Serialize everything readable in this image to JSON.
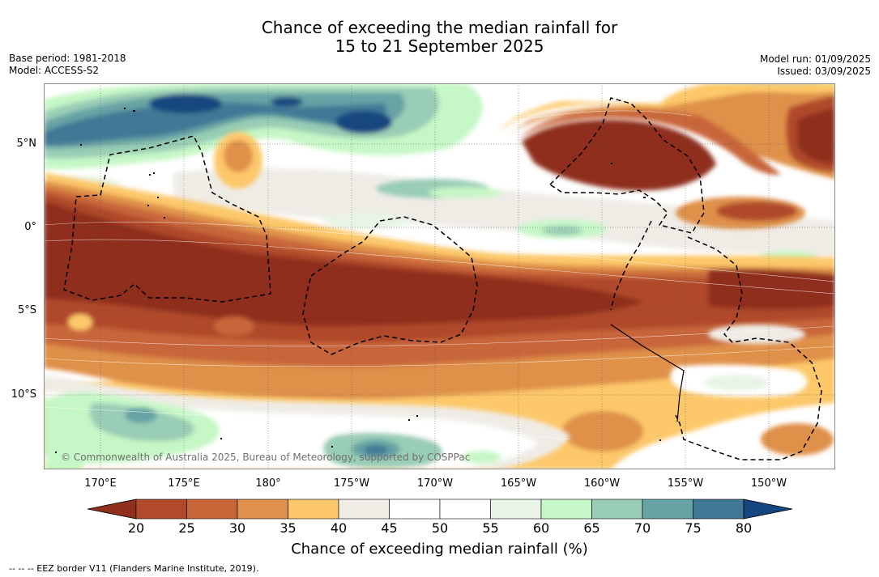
{
  "title": {
    "line1": "Chance of exceeding the median rainfall for",
    "line2": "15 to 21 September 2025"
  },
  "meta": {
    "base_period": "Base period: 1981-2018",
    "model": "Model: ACCESS-S2",
    "model_run": "Model run: 01/09/2025",
    "issued": "Issued: 03/09/2025"
  },
  "map": {
    "lat_labels": [
      "5°N",
      "0°",
      "5°S",
      "10°S"
    ],
    "lon_labels": [
      "170°E",
      "175°E",
      "180°",
      "175°W",
      "170°W",
      "165°W",
      "160°W",
      "155°W",
      "150°W"
    ],
    "copyright": "© Commonwealth of Australia 2025, Bureau of Meteorology, supported by COSPPac"
  },
  "colorbar": {
    "label": "Chance of exceeding median rainfall (%)",
    "ticks": [
      "20",
      "25",
      "30",
      "35",
      "40",
      "45",
      "50",
      "55",
      "60",
      "65",
      "70",
      "75",
      "80"
    ],
    "colors": [
      "#8f2f1c",
      "#b04a2a",
      "#c8663a",
      "#df904a",
      "#fdc86b",
      "#efece6",
      "#ffffff",
      "#ffffff",
      "#e8f4e6",
      "#c6f7c6",
      "#99cdb5",
      "#67a3a5",
      "#3f7896",
      "#16467f"
    ]
  },
  "footnote": "--  --  -- EEZ border V11 (Flanders Marine Institute, 2019)."
}
